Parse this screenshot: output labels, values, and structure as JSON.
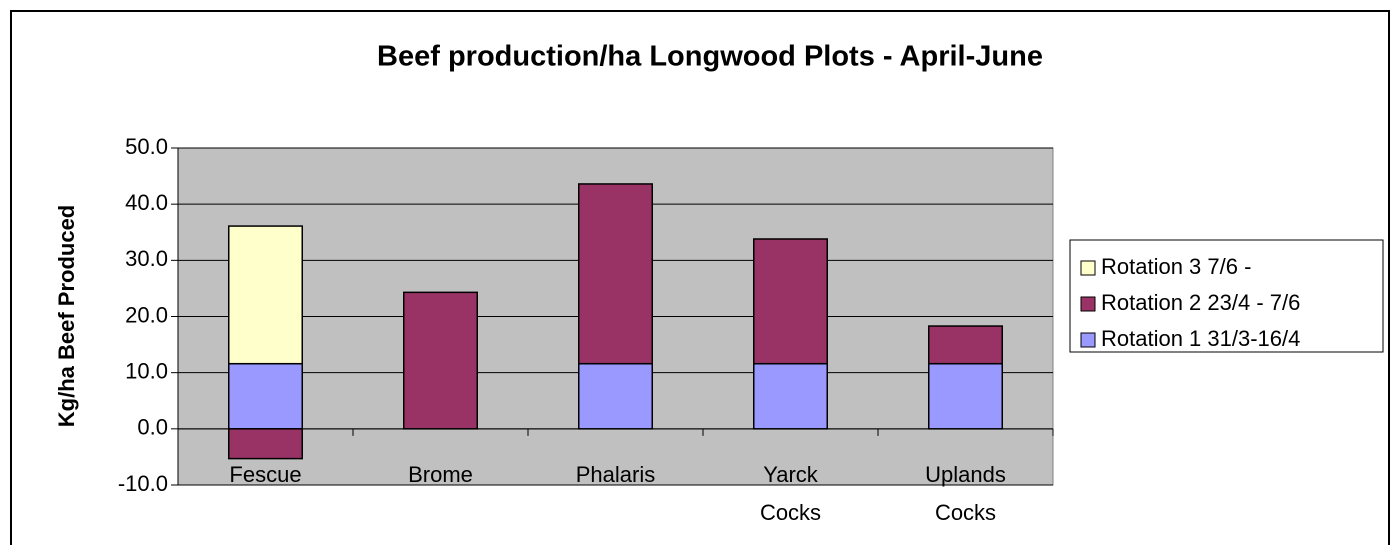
{
  "chart_data": {
    "type": "stacked_bar",
    "title": "Beef production/ha Longwood Plots - April-June",
    "y_label": "Kg/ha Beef Produced",
    "categories": [
      "Fescue",
      "Brome",
      "Phalaris",
      "Yarck Cocks",
      "Uplands Cocks"
    ],
    "series": [
      {
        "name": "Rotation 1 31/3-16/4",
        "color": "#9999ff",
        "values": [
          11.6,
          0,
          11.6,
          11.6,
          11.6
        ]
      },
      {
        "name": "Rotation 2 23/4 - 7/6",
        "color": "#993366",
        "values": [
          -5.3,
          24.3,
          32.0,
          22.2,
          6.7
        ]
      },
      {
        "name": "Rotation 3 7/6 -",
        "color": "#ffffcc",
        "values": [
          24.5,
          0,
          0,
          0,
          0
        ]
      }
    ],
    "ylim": [
      -10,
      50
    ],
    "yticks": [
      {
        "value": -10,
        "label": "-10.0"
      },
      {
        "value": 0,
        "label": "0.0"
      },
      {
        "value": 10,
        "label": "10.0"
      },
      {
        "value": 20,
        "label": "20.0"
      },
      {
        "value": 30,
        "label": "30.0"
      },
      {
        "value": 40,
        "label": "40.0"
      },
      {
        "value": 50,
        "label": "50.0"
      }
    ],
    "grid": true,
    "legend": "right"
  }
}
